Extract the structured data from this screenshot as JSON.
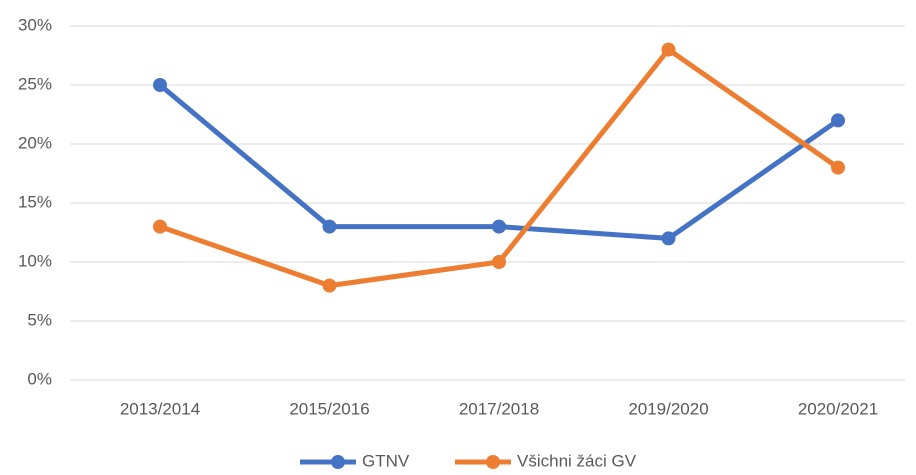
{
  "chart_data": {
    "type": "line",
    "categories": [
      "2013/2014",
      "2015/2016",
      "2017/2018",
      "2019/2020",
      "2020/2021"
    ],
    "series": [
      {
        "name": "GTNV",
        "color": "#4472c4",
        "values": [
          25,
          13,
          13,
          12,
          22
        ]
      },
      {
        "name": "Všichni žáci GV",
        "color": "#ed7d31",
        "values": [
          13,
          8,
          10,
          28,
          18
        ]
      }
    ],
    "ylim": [
      0,
      30
    ],
    "yticks": [
      {
        "value": 0,
        "label": "0%"
      },
      {
        "value": 5,
        "label": "5%"
      },
      {
        "value": 10,
        "label": "10%"
      },
      {
        "value": 15,
        "label": "15%"
      },
      {
        "value": 20,
        "label": "20%"
      },
      {
        "value": 25,
        "label": "25%"
      },
      {
        "value": 30,
        "label": "30%"
      }
    ],
    "grid": true,
    "legend": "bottom"
  }
}
